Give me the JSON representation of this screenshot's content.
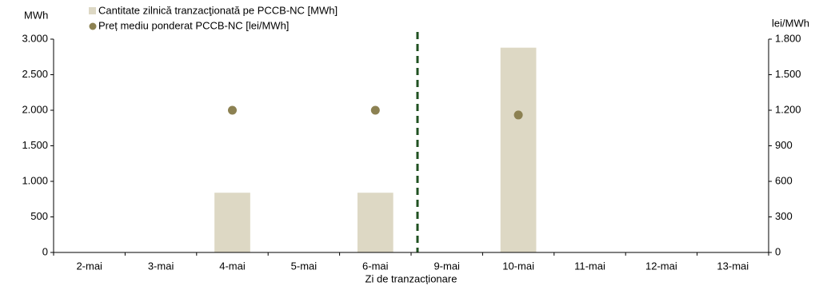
{
  "chart_data": {
    "type": "bar_scatter",
    "y_label": "MWh",
    "y2_label": "lei/MWh",
    "x_label": "Zi de tranzacționare",
    "categories": [
      "2-mai",
      "3-mai",
      "4-mai",
      "5-mai",
      "6-mai",
      "9-mai",
      "10-mai",
      "11-mai",
      "12-mai",
      "13-mai"
    ],
    "series": [
      {
        "name": "Cantitate zilnică tranzacţionată pe PCCB-NC [MWh]",
        "type": "bar",
        "color": "#ddd8c4",
        "values": [
          null,
          null,
          840,
          null,
          840,
          null,
          2880,
          null,
          null,
          null
        ]
      },
      {
        "name": "Preț mediu ponderat PCCB-NC [lei/MWh]",
        "type": "scatter",
        "color": "#8c8152",
        "axis": "y2",
        "values": [
          null,
          null,
          1200,
          null,
          1200,
          null,
          1160,
          null,
          null,
          null
        ]
      }
    ],
    "ylim": [
      0,
      3000
    ],
    "yticks": [
      0,
      500,
      {
        "value": 1000,
        "label": "1.000"
      },
      {
        "value": 1500,
        "label": "1.500"
      },
      {
        "value": 2000,
        "label": "2.000"
      },
      {
        "value": 2500,
        "label": "2.500"
      },
      {
        "value": 3000,
        "label": "3.000"
      }
    ],
    "y2lim": [
      0,
      1800
    ],
    "y2ticks": [
      0,
      300,
      600,
      900,
      {
        "value": 1200,
        "label": "1.200"
      },
      {
        "value": 1500,
        "label": "1.500"
      },
      {
        "value": 1800,
        "label": "1.800"
      }
    ]
  }
}
